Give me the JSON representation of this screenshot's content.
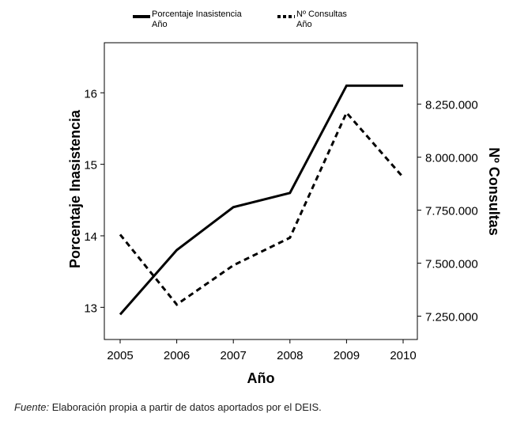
{
  "chart_data": {
    "type": "line",
    "x": [
      2005,
      2006,
      2007,
      2008,
      2009,
      2010
    ],
    "xlabel": "Año",
    "ylabel_left": "Porcentaje Inasistencia",
    "ylabel_right": "Nº Consultas",
    "ylim_left": [
      12.55,
      16.7
    ],
    "ylim_right": [
      7140000,
      8540000
    ],
    "yticks_left": [
      "13",
      "14",
      "15",
      "16"
    ],
    "yticks_right": [
      "7.250.000",
      "7.500.000",
      "7.750.000",
      "8.000.000",
      "8.250.000"
    ],
    "grid": false,
    "legend_position": "top",
    "series": [
      {
        "name": "Porcentaje Inasistencia",
        "name_line2": "Año",
        "axis": "left",
        "style": "solid",
        "color": "#000000",
        "values": [
          12.9,
          13.8,
          14.4,
          14.6,
          16.1,
          16.1
        ]
      },
      {
        "name": "Nº Consultas",
        "name_line2": "Año",
        "axis": "right",
        "style": "dashed",
        "color": "#000000",
        "values": [
          7635000,
          7305000,
          7490000,
          7620000,
          8210000,
          7905000
        ]
      }
    ]
  },
  "source": {
    "label": "Fuente:",
    "text": " Elaboración propia a partir de datos aportados por el DEIS."
  }
}
